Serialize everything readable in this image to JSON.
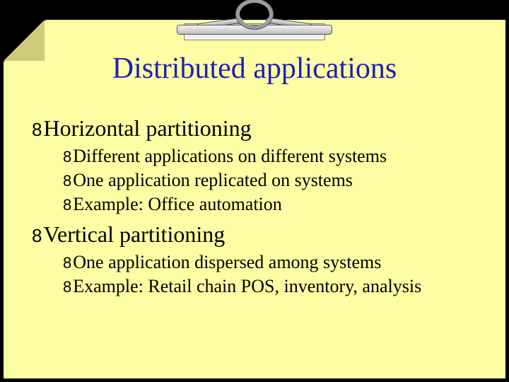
{
  "title": "Distributed applications",
  "bullet_glyph": "8",
  "colors": {
    "background": "#000000",
    "slide_bg": "#fdfea3",
    "title_color": "#1f1fb7",
    "body_color": "#000000"
  },
  "items": {
    "h1": "Horizontal partitioning",
    "h1_children": {
      "a": "Different applications on different systems",
      "b": "One application replicated on systems",
      "c": "Example: Office automation"
    },
    "h2": "Vertical partitioning",
    "h2_children": {
      "a": "One application dispersed among systems",
      "b": "Example: Retail chain POS, inventory, analysis"
    }
  }
}
